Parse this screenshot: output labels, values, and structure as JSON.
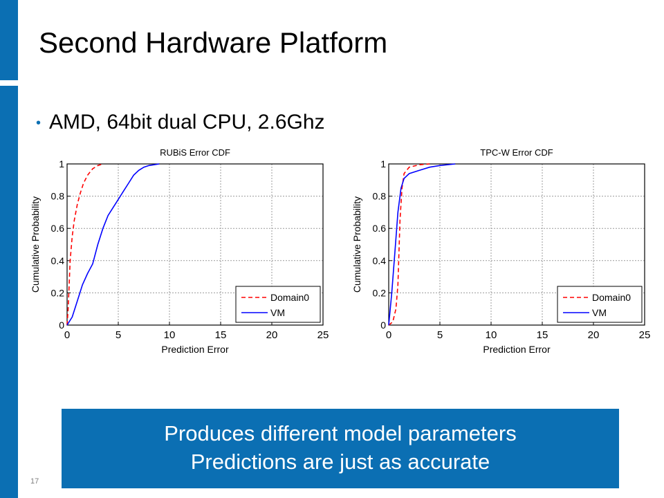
{
  "slide": {
    "title": "Second Hardware Platform",
    "bullet": "AMD, 64bit dual CPU, 2.6Ghz",
    "callout_line1": "Produces different model parameters",
    "callout_line2": "Predictions are just as accurate",
    "slide_number": "17"
  },
  "colors": {
    "accent": "#0b6fb3",
    "domain0": "#ff0000",
    "vm": "#0000ff"
  },
  "chart_data": [
    {
      "type": "line",
      "title": "RUBiS Error CDF",
      "xlabel": "Prediction Error",
      "ylabel": "Cumulative Probability",
      "xlim": [
        0,
        25
      ],
      "ylim": [
        0,
        1
      ],
      "xticks": [
        0,
        5,
        10,
        15,
        20,
        25
      ],
      "yticks": [
        0,
        0.2,
        0.4,
        0.6,
        0.8,
        1
      ],
      "grid": true,
      "legend_position": "bottom-right",
      "series": [
        {
          "name": "Domain0",
          "style": "dashed",
          "color": "#ff0000",
          "x": [
            0,
            0.1,
            0.2,
            0.3,
            0.5,
            0.7,
            1.0,
            1.3,
            1.6,
            2.0,
            2.5,
            3.0,
            3.5
          ],
          "y": [
            0,
            0.1,
            0.25,
            0.4,
            0.55,
            0.65,
            0.75,
            0.82,
            0.88,
            0.93,
            0.97,
            0.99,
            1.0
          ]
        },
        {
          "name": "VM",
          "style": "solid",
          "color": "#0000ff",
          "x": [
            0,
            0.5,
            1.0,
            1.5,
            2.0,
            2.5,
            3.0,
            3.5,
            4.0,
            4.5,
            5.0,
            5.5,
            6.0,
            6.5,
            7.0,
            7.5,
            8.0,
            9.0
          ],
          "y": [
            0,
            0.05,
            0.15,
            0.25,
            0.32,
            0.38,
            0.5,
            0.6,
            0.68,
            0.73,
            0.78,
            0.83,
            0.88,
            0.93,
            0.96,
            0.98,
            0.99,
            1.0
          ]
        }
      ]
    },
    {
      "type": "line",
      "title": "TPC-W Error CDF",
      "xlabel": "Prediction Error",
      "ylabel": "Cumulative Probability",
      "xlim": [
        0,
        25
      ],
      "ylim": [
        0,
        1
      ],
      "xticks": [
        0,
        5,
        10,
        15,
        20,
        25
      ],
      "yticks": [
        0,
        0.2,
        0.4,
        0.6,
        0.8,
        1
      ],
      "grid": true,
      "legend_position": "bottom-right",
      "series": [
        {
          "name": "Domain0",
          "style": "dashed",
          "color": "#ff0000",
          "x": [
            0,
            0.4,
            0.7,
            0.9,
            1.0,
            1.1,
            1.3,
            1.5,
            2.0,
            3.0,
            4.0
          ],
          "y": [
            0,
            0.02,
            0.1,
            0.25,
            0.45,
            0.65,
            0.85,
            0.94,
            0.98,
            0.995,
            1.0
          ]
        },
        {
          "name": "VM",
          "style": "solid",
          "color": "#0000ff",
          "x": [
            0,
            0.3,
            0.6,
            0.9,
            1.2,
            1.5,
            2.0,
            3.0,
            4.0,
            5.0,
            6.5
          ],
          "y": [
            0,
            0.2,
            0.45,
            0.7,
            0.85,
            0.91,
            0.94,
            0.96,
            0.98,
            0.99,
            1.0
          ]
        }
      ]
    }
  ]
}
